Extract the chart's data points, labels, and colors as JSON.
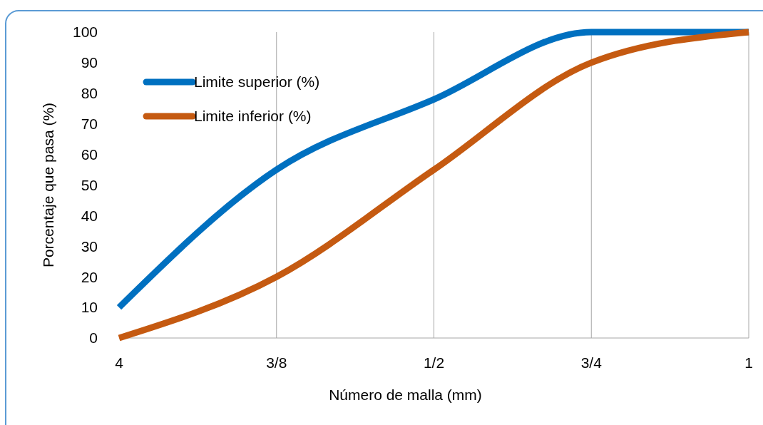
{
  "chart_data": {
    "type": "line",
    "xlabel": "Número de malla (mm)",
    "ylabel": "Porcentaje que pasa (%)",
    "categories": [
      "4",
      "3/8",
      "1/2",
      "3/4",
      "1"
    ],
    "series": [
      {
        "name": "Limite superior (%)",
        "color": "#0070c0",
        "values": [
          10,
          55,
          78,
          100,
          100
        ]
      },
      {
        "name": "Limite inferior (%)",
        "color": "#c55a11",
        "values": [
          0,
          20,
          55,
          90,
          100
        ]
      }
    ],
    "ylim": [
      0,
      100
    ],
    "yticks": [
      0,
      10,
      20,
      30,
      40,
      50,
      60,
      70,
      80,
      90,
      100
    ],
    "grid": "x",
    "legend": "top left",
    "marker": "none",
    "line_style": "solid"
  }
}
